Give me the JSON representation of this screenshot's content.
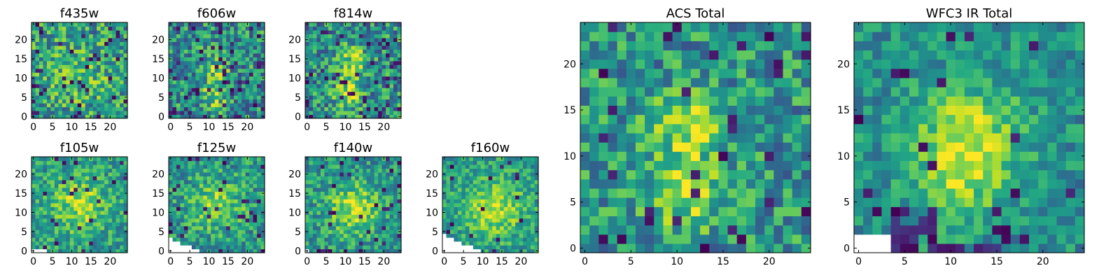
{
  "chart_data": [
    {
      "type": "heatmap",
      "title": "f435w",
      "grid": false,
      "colormap": "viridis",
      "nx": 25,
      "ny": 25,
      "seed": 11,
      "peak": 0.15,
      "noise": 0.3,
      "base": 0.55,
      "blobs": [
        [
          12,
          11,
          6,
          0.12
        ]
      ],
      "holes": 0.06,
      "blank": [],
      "xticks": [
        0,
        5,
        10,
        15,
        20
      ],
      "yticks": [
        0,
        5,
        10,
        15,
        20
      ],
      "xlim": [
        0,
        25
      ],
      "ylim": [
        0,
        25
      ]
    },
    {
      "type": "heatmap",
      "title": "f606w",
      "grid": false,
      "colormap": "viridis",
      "nx": 25,
      "ny": 25,
      "seed": 23,
      "peak": 0.25,
      "noise": 0.3,
      "base": 0.5,
      "blobs": [
        [
          11,
          6,
          2.5,
          0.35
        ],
        [
          12,
          13,
          2.5,
          0.2
        ]
      ],
      "holes": 0.08,
      "blank": [],
      "xticks": [
        0,
        5,
        10,
        15,
        20
      ],
      "yticks": [
        0,
        5,
        10,
        15,
        20
      ],
      "xlim": [
        0,
        25
      ],
      "ylim": [
        0,
        25
      ]
    },
    {
      "type": "heatmap",
      "title": "f814w",
      "grid": false,
      "colormap": "viridis",
      "nx": 25,
      "ny": 25,
      "seed": 37,
      "peak": 0.3,
      "noise": 0.3,
      "base": 0.5,
      "blobs": [
        [
          11,
          6,
          2.5,
          0.35
        ],
        [
          12,
          14,
          3,
          0.3
        ]
      ],
      "holes": 0.07,
      "blank": [],
      "xticks": [
        0,
        5,
        10,
        15,
        20
      ],
      "yticks": [
        0,
        5,
        10,
        15,
        20
      ],
      "xlim": [
        0,
        25
      ],
      "ylim": [
        0,
        25
      ]
    },
    {
      "type": "heatmap",
      "title": "f105w",
      "grid": false,
      "colormap": "viridis",
      "nx": 25,
      "ny": 25,
      "seed": 41,
      "peak": 0.3,
      "noise": 0.22,
      "base": 0.55,
      "blobs": [
        [
          12,
          12,
          5,
          0.3
        ]
      ],
      "holes": 0.05,
      "blank": [
        [
          0,
          0
        ],
        [
          1,
          0
        ],
        [
          2,
          0
        ],
        [
          3,
          0
        ]
      ],
      "xticks": [
        0,
        5,
        10,
        15,
        20
      ],
      "yticks": [
        0,
        5,
        10,
        15,
        20
      ],
      "xlim": [
        0,
        25
      ],
      "ylim": [
        0,
        25
      ]
    },
    {
      "type": "heatmap",
      "title": "f125w",
      "grid": false,
      "colormap": "viridis",
      "nx": 25,
      "ny": 25,
      "seed": 53,
      "peak": 0.3,
      "noise": 0.24,
      "base": 0.52,
      "blobs": [
        [
          12,
          12,
          5,
          0.3
        ]
      ],
      "holes": 0.06,
      "blank": [
        [
          0,
          0
        ],
        [
          1,
          0
        ],
        [
          2,
          0
        ],
        [
          3,
          0
        ],
        [
          4,
          0
        ],
        [
          5,
          0
        ],
        [
          6,
          0
        ],
        [
          7,
          0
        ],
        [
          0,
          1
        ],
        [
          1,
          1
        ],
        [
          2,
          1
        ],
        [
          3,
          1
        ],
        [
          4,
          1
        ],
        [
          5,
          1
        ],
        [
          0,
          2
        ],
        [
          1,
          2
        ],
        [
          2,
          2
        ],
        [
          0,
          3
        ]
      ],
      "xticks": [
        0,
        5,
        10,
        15,
        20
      ],
      "yticks": [
        0,
        5,
        10,
        15,
        20
      ],
      "xlim": [
        0,
        25
      ],
      "ylim": [
        0,
        25
      ]
    },
    {
      "type": "heatmap",
      "title": "f140w",
      "grid": false,
      "colormap": "viridis",
      "nx": 25,
      "ny": 25,
      "seed": 67,
      "peak": 0.35,
      "noise": 0.22,
      "base": 0.52,
      "blobs": [
        [
          12,
          11,
          5,
          0.35
        ]
      ],
      "holes": 0.04,
      "blank": [
        [
          0,
          0
        ]
      ],
      "darkrows": [
        [
          0,
          1,
          0,
          6
        ],
        [
          0,
          2,
          0,
          4
        ],
        [
          3,
          0,
          4,
          1
        ]
      ],
      "xticks": [
        0,
        5,
        10,
        15,
        20
      ],
      "yticks": [
        0,
        5,
        10,
        15,
        20
      ],
      "xlim": [
        0,
        25
      ],
      "ylim": [
        0,
        25
      ]
    },
    {
      "type": "heatmap",
      "title": "f160w",
      "grid": false,
      "colormap": "viridis",
      "nx": 25,
      "ny": 25,
      "seed": 79,
      "peak": 0.35,
      "noise": 0.2,
      "base": 0.55,
      "blobs": [
        [
          13,
          11,
          5,
          0.35
        ]
      ],
      "holes": 0.03,
      "blank": [
        [
          0,
          0
        ],
        [
          1,
          0
        ],
        [
          2,
          0
        ],
        [
          3,
          0
        ],
        [
          4,
          0
        ],
        [
          5,
          0
        ],
        [
          6,
          0
        ],
        [
          7,
          0
        ],
        [
          8,
          0
        ],
        [
          9,
          0
        ],
        [
          0,
          1
        ],
        [
          1,
          1
        ],
        [
          2,
          1
        ],
        [
          3,
          1
        ],
        [
          4,
          1
        ],
        [
          5,
          1
        ],
        [
          6,
          1
        ],
        [
          7,
          1
        ],
        [
          0,
          2
        ],
        [
          1,
          2
        ],
        [
          2,
          2
        ],
        [
          3,
          2
        ],
        [
          4,
          2
        ],
        [
          0,
          3
        ],
        [
          1,
          3
        ],
        [
          2,
          3
        ],
        [
          0,
          4
        ]
      ],
      "xticks": [
        0,
        5,
        10,
        15,
        20
      ],
      "yticks": [
        0,
        5,
        10,
        15,
        20
      ],
      "xlim": [
        0,
        25
      ],
      "ylim": [
        0,
        25
      ]
    },
    {
      "type": "heatmap",
      "title": "ACS Total",
      "grid": false,
      "colormap": "viridis",
      "nx": 25,
      "ny": 25,
      "seed": 97,
      "peak": 0.3,
      "noise": 0.26,
      "base": 0.52,
      "blobs": [
        [
          11,
          13,
          2.5,
          0.4
        ],
        [
          11,
          6,
          2.5,
          0.4
        ]
      ],
      "holes": 0.05,
      "blank": [],
      "xticks": [
        0,
        5,
        10,
        15,
        20
      ],
      "yticks": [
        0,
        5,
        10,
        15,
        20
      ],
      "xlim": [
        0,
        25
      ],
      "ylim": [
        0,
        25
      ]
    },
    {
      "type": "heatmap",
      "title": "WFC3 IR Total",
      "grid": false,
      "colormap": "viridis",
      "nx": 25,
      "ny": 25,
      "seed": 113,
      "peak": 0.4,
      "noise": 0.18,
      "base": 0.5,
      "blobs": [
        [
          12,
          12,
          4,
          0.4
        ],
        [
          11,
          7,
          3,
          0.2
        ]
      ],
      "holes": 0.04,
      "blank": [
        [
          0,
          0
        ],
        [
          1,
          0
        ],
        [
          2,
          0
        ],
        [
          3,
          0
        ],
        [
          0,
          1
        ],
        [
          1,
          1
        ],
        [
          2,
          1
        ],
        [
          3,
          1
        ]
      ],
      "darkrows": [
        [
          4,
          0,
          12,
          1
        ],
        [
          4,
          1,
          5,
          4
        ]
      ],
      "xticks": [
        0,
        5,
        10,
        15,
        20
      ],
      "yticks": [
        0,
        5,
        10,
        15,
        20
      ],
      "xlim": [
        0,
        25
      ],
      "ylim": [
        0,
        25
      ]
    }
  ]
}
